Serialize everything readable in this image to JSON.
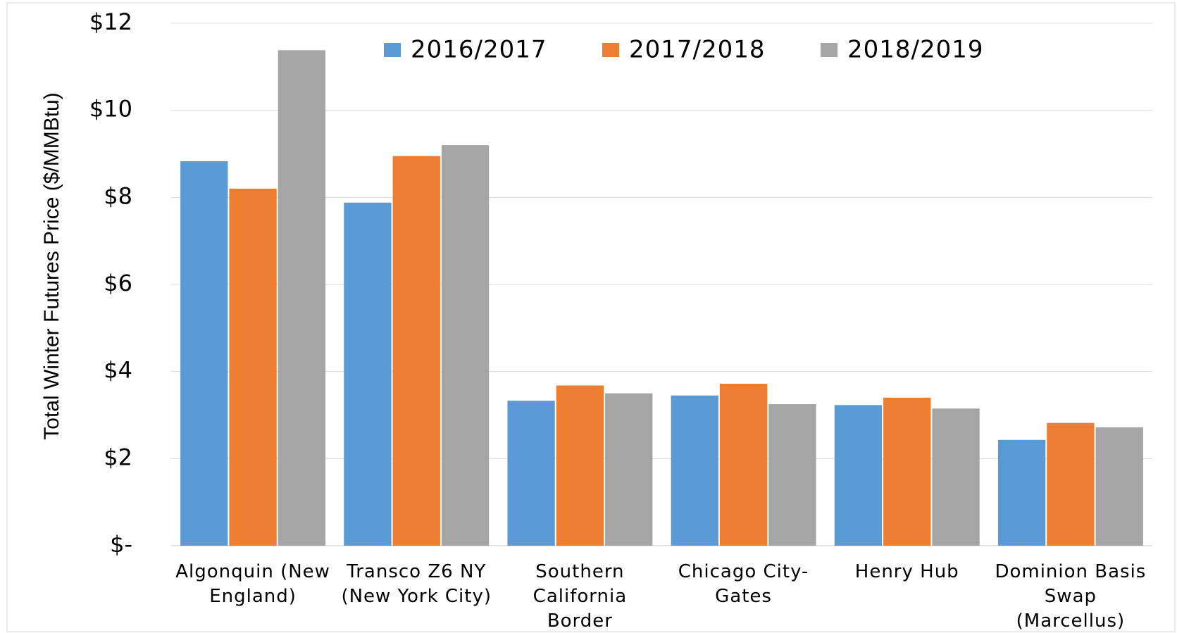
{
  "chart_data": {
    "type": "bar",
    "y_axis_label": "Total Winter Futures Price ($/MMBtu)",
    "categories": [
      "Algonquin (New England)",
      "Transco Z6 NY (New York City)",
      "Southern California Border",
      "Chicago City-Gates",
      "Henry Hub",
      "Dominion Basis Swap (Marcellus)"
    ],
    "series": [
      {
        "name": "2016/2017",
        "color": "#5b9bd5",
        "values": [
          8.83,
          7.88,
          3.33,
          3.45,
          3.23,
          2.43
        ]
      },
      {
        "name": "2017/2018",
        "color": "#ed7d31",
        "values": [
          8.2,
          8.95,
          3.68,
          3.72,
          3.4,
          2.82
        ]
      },
      {
        "name": "2018/2019",
        "color": "#a5a5a5",
        "values": [
          11.38,
          9.2,
          3.5,
          3.25,
          3.15,
          2.72
        ]
      }
    ],
    "ylim": [
      0,
      12
    ],
    "yticks": [
      {
        "value": 0,
        "label": "$-"
      },
      {
        "value": 2,
        "label": "$2"
      },
      {
        "value": 4,
        "label": "$4"
      },
      {
        "value": 6,
        "label": "$6"
      },
      {
        "value": 8,
        "label": "$8"
      },
      {
        "value": 10,
        "label": "$10"
      },
      {
        "value": 12,
        "label": "$12"
      }
    ],
    "grid": true,
    "legend_position": "top"
  }
}
